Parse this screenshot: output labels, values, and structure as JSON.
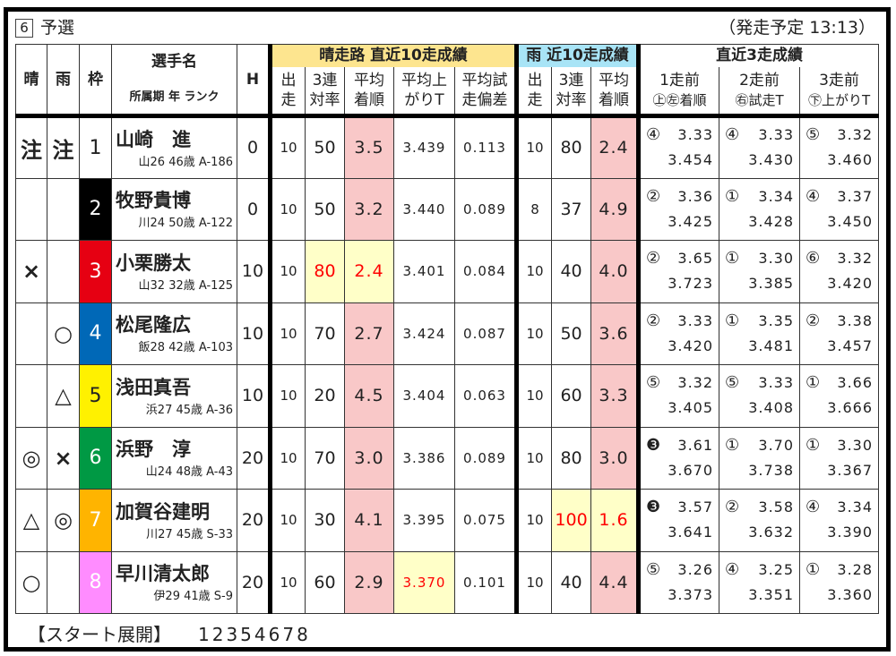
{
  "race": {
    "number": "6",
    "name": "予選",
    "start_time": "（発走予定 13:13）"
  },
  "headers": {
    "sun_mark": "晴",
    "rain_mark": "雨",
    "frame": "枠",
    "player": "選手名",
    "player_sub": "所属期 年 ランク",
    "handicap": "H",
    "sun_group": "晴走路 直近10走成績",
    "rain_group": "雨 近10走成績",
    "recent_group": "直近3走成績",
    "starts": [
      "出",
      "走"
    ],
    "top3": [
      "3連",
      "対率"
    ],
    "avg_finish": [
      "平均",
      "着順"
    ],
    "avg_last": [
      "平均上",
      "がりT"
    ],
    "avg_trial": [
      "平均試",
      "走偏差"
    ],
    "r1": "1走前",
    "r2": "2走前",
    "r3": "3走前",
    "r1_sub": "㊤㊧着順",
    "r2_sub": "㊨試走T",
    "r3_sub": "㊦上がりT"
  },
  "frame_colors": [
    "#ffffff",
    "#000000",
    "#e60012",
    "#0068b7",
    "#fff100",
    "#009944",
    "#ffb400",
    "#ff8cff"
  ],
  "frame_text_colors": [
    "#222222",
    "#ffffff",
    "#ffffff",
    "#ffffff",
    "#222222",
    "#ffffff",
    "#ffffff",
    "#ffffff"
  ],
  "rows": [
    {
      "sun": "注",
      "rain": "注",
      "frame": "1",
      "name": "山崎　進",
      "info": "山26 46歳 A-186",
      "h": "0",
      "s_starts": "10",
      "s_top3": "50",
      "s_avg": "3.5",
      "s_last": "3.439",
      "s_trial": "0.113",
      "r_starts": "10",
      "r_top3": "80",
      "r_avg": "2.4",
      "rec": [
        [
          "④",
          "3.33",
          "3.454"
        ],
        [
          "④",
          "3.33",
          "3.430"
        ],
        [
          "⑤",
          "3.32",
          "3.460"
        ]
      ]
    },
    {
      "sun": "",
      "rain": "",
      "frame": "2",
      "name": "牧野貴博",
      "info": "川24 50歳 A-122",
      "h": "0",
      "s_starts": "10",
      "s_top3": "50",
      "s_avg": "3.2",
      "s_last": "3.440",
      "s_trial": "0.089",
      "r_starts": "8",
      "r_top3": "37",
      "r_avg": "4.9",
      "rec": [
        [
          "②",
          "3.36",
          "3.425"
        ],
        [
          "①",
          "3.34",
          "3.428"
        ],
        [
          "④",
          "3.37",
          "3.450"
        ]
      ]
    },
    {
      "sun": "×",
      "rain": "",
      "frame": "3",
      "name": "小栗勝太",
      "info": "山32 32歳 A-125",
      "h": "10",
      "s_starts": "10",
      "s_top3": "80",
      "s_avg": "2.4",
      "s_last": "3.401",
      "s_trial": "0.084",
      "r_starts": "10",
      "r_top3": "40",
      "r_avg": "4.0",
      "rec": [
        [
          "②",
          "3.65",
          "3.723"
        ],
        [
          "①",
          "3.30",
          "3.385"
        ],
        [
          "⑥",
          "3.32",
          "3.420"
        ]
      ]
    },
    {
      "sun": "",
      "rain": "○",
      "frame": "4",
      "name": "松尾隆広",
      "info": "飯28 42歳 A-103",
      "h": "10",
      "s_starts": "10",
      "s_top3": "70",
      "s_avg": "2.7",
      "s_last": "3.424",
      "s_trial": "0.087",
      "r_starts": "10",
      "r_top3": "50",
      "r_avg": "3.6",
      "rec": [
        [
          "②",
          "3.33",
          "3.420"
        ],
        [
          "①",
          "3.35",
          "3.481"
        ],
        [
          "②",
          "3.38",
          "3.457"
        ]
      ]
    },
    {
      "sun": "",
      "rain": "△",
      "frame": "5",
      "name": "浅田真吾",
      "info": "浜27 45歳 A-36",
      "h": "10",
      "s_starts": "10",
      "s_top3": "20",
      "s_avg": "4.5",
      "s_last": "3.404",
      "s_trial": "0.063",
      "r_starts": "10",
      "r_top3": "60",
      "r_avg": "3.3",
      "rec": [
        [
          "⑤",
          "3.32",
          "3.405"
        ],
        [
          "⑤",
          "3.33",
          "3.408"
        ],
        [
          "①",
          "3.66",
          "3.666"
        ]
      ]
    },
    {
      "sun": "◎",
      "rain": "×",
      "frame": "6",
      "name": "浜野　淳",
      "info": "山24 48歳 A-43",
      "h": "20",
      "s_starts": "10",
      "s_top3": "70",
      "s_avg": "3.0",
      "s_last": "3.386",
      "s_trial": "0.089",
      "r_starts": "10",
      "r_top3": "80",
      "r_avg": "3.0",
      "rec": [
        [
          "❸",
          "3.61",
          "3.670"
        ],
        [
          "①",
          "3.70",
          "3.738"
        ],
        [
          "①",
          "3.30",
          "3.367"
        ]
      ]
    },
    {
      "sun": "△",
      "rain": "◎",
      "frame": "7",
      "name": "加賀谷建明",
      "info": "川27 45歳 S-33",
      "h": "20",
      "s_starts": "10",
      "s_top3": "30",
      "s_avg": "4.1",
      "s_last": "3.395",
      "s_trial": "0.075",
      "r_starts": "10",
      "r_top3": "100",
      "r_avg": "1.6",
      "rec": [
        [
          "❸",
          "3.57",
          "3.641"
        ],
        [
          "②",
          "3.58",
          "3.632"
        ],
        [
          "④",
          "3.34",
          "3.390"
        ]
      ]
    },
    {
      "sun": "○",
      "rain": "",
      "frame": "8",
      "name": "早川清太郎",
      "info": "伊29 41歳 S-9",
      "h": "20",
      "s_starts": "10",
      "s_top3": "60",
      "s_avg": "2.9",
      "s_last": "3.370",
      "s_trial": "0.101",
      "r_starts": "10",
      "r_top3": "40",
      "r_avg": "4.4",
      "rec": [
        [
          "⑤",
          "3.26",
          "3.373"
        ],
        [
          "④",
          "3.25",
          "3.351"
        ],
        [
          "①",
          "3.28",
          "3.360"
        ]
      ]
    }
  ],
  "highlights": {
    "yellow": [
      [
        2,
        "s_top3"
      ],
      [
        2,
        "s_avg"
      ],
      [
        7,
        "s_last"
      ],
      [
        6,
        "r_top3"
      ],
      [
        6,
        "r_avg"
      ]
    ],
    "red_text": [
      [
        2,
        "s_top3"
      ],
      [
        2,
        "s_avg"
      ],
      [
        7,
        "s_last"
      ],
      [
        6,
        "r_top3"
      ],
      [
        6,
        "r_avg"
      ]
    ]
  },
  "footer": {
    "label": "【スタート展開】",
    "order": "12354678"
  }
}
